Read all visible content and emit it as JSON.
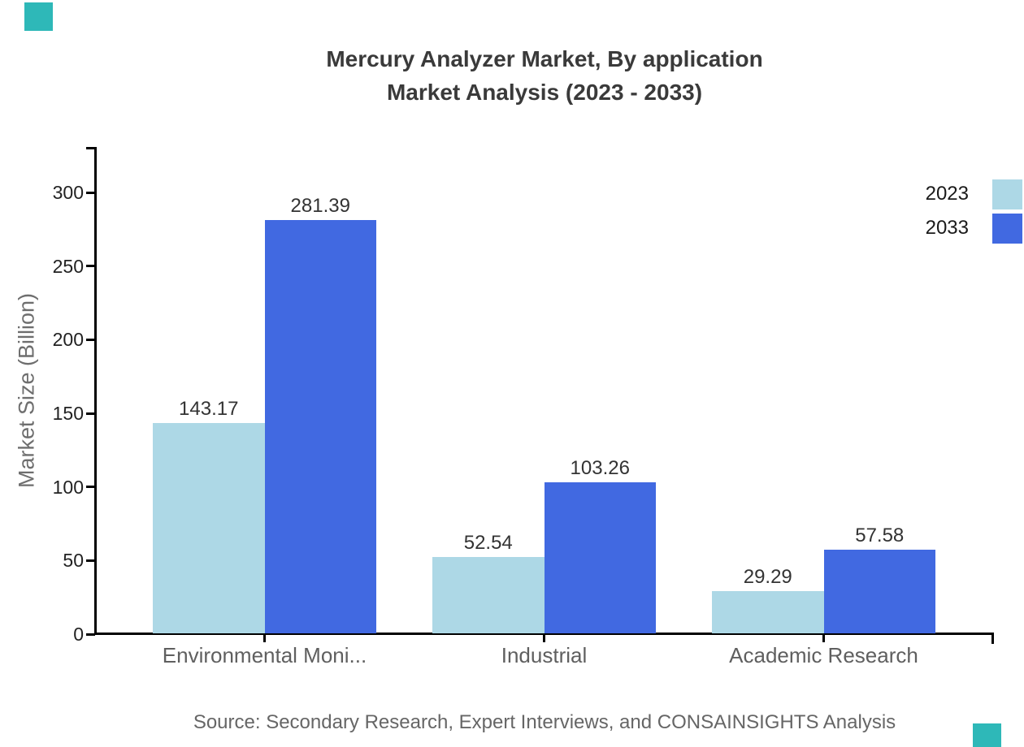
{
  "page": {
    "background": "#ffffff"
  },
  "brand": {
    "corner_accent_color": "#2eb8b8"
  },
  "chart_data": {
    "type": "bar",
    "title": "Mercury Analyzer Market, By application",
    "subtitle": "Market Analysis (2023 - 2033)",
    "categories": [
      "Environmental Moni...",
      "Industrial",
      "Academic Research"
    ],
    "series": [
      {
        "name": "2023",
        "color": "#ADD8E6",
        "values": [
          143.17,
          52.54,
          29.29
        ]
      },
      {
        "name": "2033",
        "color": "#4169E1",
        "values": [
          281.39,
          103.26,
          57.58
        ]
      }
    ],
    "xlabel": "",
    "ylabel": "Market Size (Billion)",
    "ylim": [
      0,
      330
    ],
    "y_ticks": [
      0,
      50,
      100,
      150,
      200,
      250,
      300
    ],
    "grid": false,
    "legend_position": "top-right",
    "value_labels": true
  },
  "source": {
    "text": "Source: Secondary Research, Expert Interviews, and CONSAINSIGHTS Analysis"
  }
}
